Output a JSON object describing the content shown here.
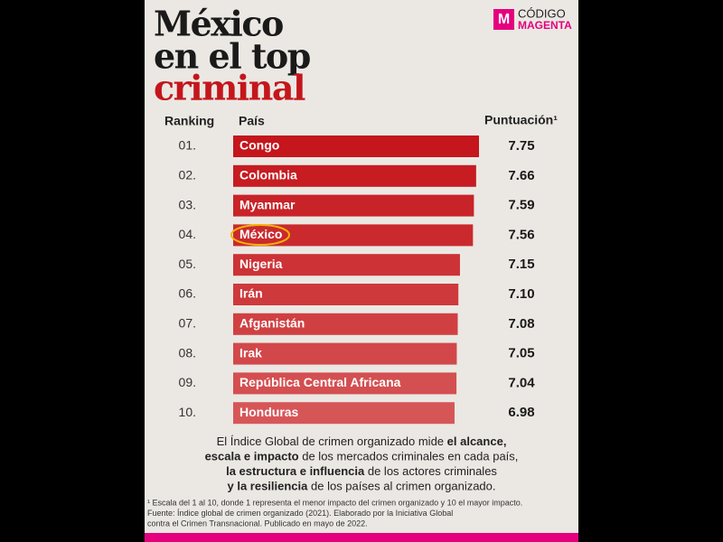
{
  "chart_data": {
    "type": "bar",
    "title": [
      "México",
      "en el top",
      "criminal"
    ],
    "brand": [
      "CÓDIGO",
      "MAGENTA"
    ],
    "brand_icon": "M",
    "headers": [
      "Ranking",
      "País",
      "Puntuación¹"
    ],
    "ranks": [
      "01.",
      "02.",
      "03.",
      "04.",
      "05.",
      "06.",
      "07.",
      "08.",
      "09.",
      "10."
    ],
    "categories": [
      "Congo",
      "Colombia",
      "Myanmar",
      "México",
      "Nigeria",
      "Irán",
      "Afganistán",
      "Irak",
      "República Central Africana",
      "Honduras"
    ],
    "values": [
      7.75,
      7.66,
      7.59,
      7.56,
      7.15,
      7.1,
      7.08,
      7.05,
      7.04,
      6.98
    ],
    "value_labels": [
      "7.75",
      "7.66",
      "7.59",
      "7.56",
      "7.15",
      "7.10",
      "7.08",
      "7.05",
      "7.04",
      "6.98"
    ],
    "colors": [
      "#c4161c",
      "#c61c22",
      "#c82328",
      "#ca2a2e",
      "#cc3236",
      "#ce393c",
      "#d04043",
      "#d2484a",
      "#d44f51",
      "#d65658"
    ],
    "description": [
      [
        {
          "text": "El Índice Global de crimen organizado mide ",
          "bold": false
        },
        {
          "text": "el alcance,",
          "bold": true
        }
      ],
      [
        {
          "text": "escala e impacto",
          "bold": true
        },
        {
          "text": " de los mercados criminales en cada país,",
          "bold": false
        }
      ],
      [
        {
          "text": "la estructura e influencia",
          "bold": true
        },
        {
          "text": " de los actores criminales",
          "bold": false
        }
      ],
      [
        {
          "text": "y la resiliencia",
          "bold": true
        },
        {
          "text": " de los países al crimen organizado.",
          "bold": false
        }
      ]
    ],
    "notes": [
      "¹ Escala del 1 al 10, donde 1 representa el menor impacto del crimen organizado y 10 el mayor impacto.",
      "Fuente: Índice global de crimen organizado (2021). Elaborado por la Iniciativa Global",
      "contra el Crimen Transnacional. Publicado en mayo de 2022."
    ]
  }
}
